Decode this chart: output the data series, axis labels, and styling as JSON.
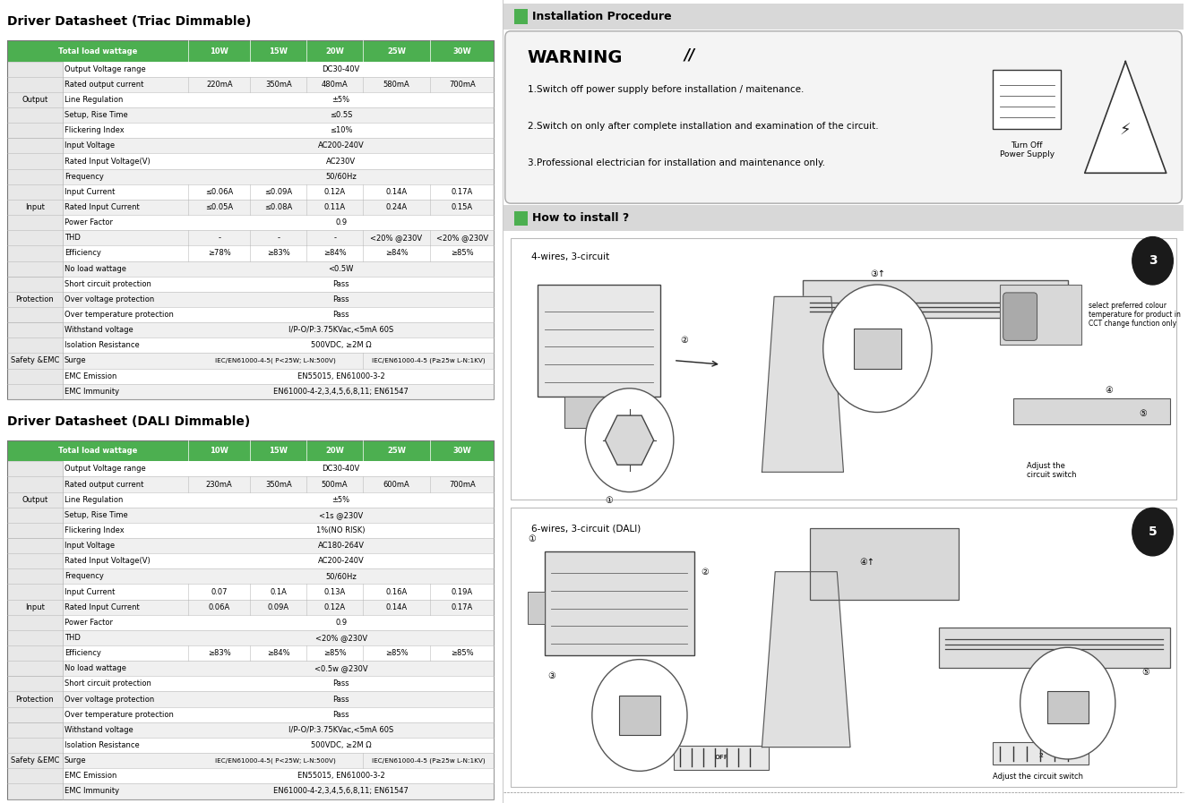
{
  "title1": "Driver Datasheet (Triac Dimmable)",
  "title2": "Driver Datasheet (DALI Dimmable)",
  "header_bg": "#4CAF50",
  "header_fg": "#ffffff",
  "alt_row_bg": "#f0f0f0",
  "white_bg": "#ffffff",
  "border_color": "#bbbbbb",
  "cat_bg": "#e8e8e8",
  "triac_headers": [
    "",
    "Total load wattage",
    "10W",
    "15W",
    "20W",
    "25W",
    "30W"
  ],
  "triac_rows": [
    [
      "Output",
      "Output Voltage range",
      "DC30-40V",
      "",
      "",
      "",
      ""
    ],
    [
      "",
      "Rated output current",
      "220mA",
      "350mA",
      "480mA",
      "580mA",
      "700mA"
    ],
    [
      "",
      "Line Regulation",
      "±5%",
      "",
      "",
      "",
      ""
    ],
    [
      "",
      "Setup, Rise Time",
      "≤0.5S",
      "",
      "",
      "",
      ""
    ],
    [
      "",
      "Flickering Index",
      "≤10%",
      "",
      "",
      "",
      ""
    ],
    [
      "Input",
      "Input Voltage",
      "AC200-240V",
      "",
      "",
      "",
      ""
    ],
    [
      "",
      "Rated Input Voltage(V)",
      "AC230V",
      "",
      "",
      "",
      ""
    ],
    [
      "",
      "Frequency",
      "50/60Hz",
      "",
      "",
      "",
      ""
    ],
    [
      "",
      "Input Current",
      "≤0.06A",
      "≤0.09A",
      "0.12A",
      "0.14A",
      "0.17A"
    ],
    [
      "",
      "Rated Input Current",
      "≤0.05A",
      "≤0.08A",
      "0.11A",
      "0.24A",
      "0.15A"
    ],
    [
      "",
      "Power Factor",
      "0.9",
      "",
      "",
      "",
      ""
    ],
    [
      "",
      "THD",
      "-",
      "-",
      "-",
      "<20% @230V",
      "<20% @230V"
    ],
    [
      "",
      "Efficiency",
      "≥78%",
      "≥83%",
      "≥84%",
      "≥84%",
      "≥85%"
    ],
    [
      "",
      "No load wattage",
      "<0.5W",
      "",
      "",
      "",
      ""
    ],
    [
      "Protection",
      "Short circuit protection",
      "Pass",
      "",
      "",
      "",
      ""
    ],
    [
      "",
      "Over voltage protection",
      "Pass",
      "",
      "",
      "",
      ""
    ],
    [
      "",
      "Over temperature protection",
      "Pass",
      "",
      "",
      "",
      ""
    ],
    [
      "Safety &EMC",
      "Withstand voltage",
      "I/P-O/P:3.75KVac,<5mA 60S",
      "",
      "",
      "",
      ""
    ],
    [
      "",
      "Isolation Resistance",
      "500VDC, ≥2M Ω",
      "",
      "",
      "",
      ""
    ],
    [
      "",
      "Surge",
      "IEC/EN61000-4-5( P<25W; L-N:500V)",
      "",
      "",
      "IEC/EN61000-4-5 (P≥25w L-N:1KV)",
      ""
    ],
    [
      "",
      "EMC Emission",
      "EN55015, EN61000-3-2",
      "",
      "",
      "",
      ""
    ],
    [
      "",
      "EMC Immunity",
      "EN61000-4-2,3,4,5,6,8,11; EN61547",
      "",
      "",
      "",
      ""
    ]
  ],
  "dali_headers": [
    "",
    "Total load wattage",
    "10W",
    "15W",
    "20W",
    "25W",
    "30W"
  ],
  "dali_rows": [
    [
      "Output",
      "Output Voltage range",
      "DC30-40V",
      "",
      "",
      "",
      ""
    ],
    [
      "",
      "Rated output current",
      "230mA",
      "350mA",
      "500mA",
      "600mA",
      "700mA"
    ],
    [
      "",
      "Line Regulation",
      "±5%",
      "",
      "",
      "",
      ""
    ],
    [
      "",
      "Setup, Rise Time",
      "<1s @230V",
      "",
      "",
      "",
      ""
    ],
    [
      "",
      "Flickering Index",
      "1%(NO RISK)",
      "",
      "",
      "",
      ""
    ],
    [
      "Input",
      "Input Voltage",
      "AC180-264V",
      "",
      "",
      "",
      ""
    ],
    [
      "",
      "Rated Input Voltage(V)",
      "AC200-240V",
      "",
      "",
      "",
      ""
    ],
    [
      "",
      "Frequency",
      "50/60Hz",
      "",
      "",
      "",
      ""
    ],
    [
      "",
      "Input Current",
      "0.07",
      "0.1A",
      "0.13A",
      "0.16A",
      "0.19A"
    ],
    [
      "",
      "Rated Input Current",
      "0.06A",
      "0.09A",
      "0.12A",
      "0.14A",
      "0.17A"
    ],
    [
      "",
      "Power Factor",
      "0.9",
      "",
      "",
      "",
      ""
    ],
    [
      "",
      "THD",
      "<20% @230V",
      "",
      "",
      "",
      ""
    ],
    [
      "",
      "Efficiency",
      "≥83%",
      "≥84%",
      "≥85%",
      "≥85%",
      "≥85%"
    ],
    [
      "",
      "No load wattage",
      "<0.5w @230V",
      "",
      "",
      "",
      ""
    ],
    [
      "Protection",
      "Short circuit protection",
      "Pass",
      "",
      "",
      "",
      ""
    ],
    [
      "",
      "Over voltage protection",
      "Pass",
      "",
      "",
      "",
      ""
    ],
    [
      "",
      "Over temperature protection",
      "Pass",
      "",
      "",
      "",
      ""
    ],
    [
      "Safety &EMC",
      "Withstand voltage",
      "I/P-O/P:3.75KVac,<5mA 60S",
      "",
      "",
      "",
      ""
    ],
    [
      "",
      "Isolation Resistance",
      "500VDC, ≥2M Ω",
      "",
      "",
      "",
      ""
    ],
    [
      "",
      "Surge",
      "IEC/EN61000-4-5( P<25W; L-N:500V)",
      "",
      "",
      "IEC/EN61000-4-5 (P≥25w L-N:1KV)",
      ""
    ],
    [
      "",
      "EMC Emission",
      "EN55015, EN61000-3-2",
      "",
      "",
      "",
      ""
    ],
    [
      "",
      "EMC Immunity",
      "EN61000-4-2,3,4,5,6,8,11; EN61547",
      "",
      "",
      "",
      ""
    ]
  ],
  "triac_span_all": [
    "Output Voltage range",
    "Line Regulation",
    "Setup, Rise Time",
    "Flickering Index",
    "Input Voltage",
    "Rated Input Voltage(V)",
    "Frequency",
    "Power Factor",
    "No load wattage",
    "Short circuit protection",
    "Over voltage protection",
    "Over temperature protection",
    "Withstand voltage",
    "Isolation Resistance",
    "EMC Emission",
    "EMC Immunity"
  ],
  "dali_span_all": [
    "Output Voltage range",
    "Line Regulation",
    "Setup, Rise Time",
    "Flickering Index",
    "Input Voltage",
    "Rated Input Voltage(V)",
    "Frequency",
    "Power Factor",
    "No load wattage",
    "Short circuit protection",
    "Over voltage protection",
    "Over temperature protection",
    "Withstand voltage",
    "Isolation Resistance",
    "EMC Emission",
    "EMC Immunity",
    "THD"
  ],
  "surge_split_params": [
    "Surge"
  ],
  "install_title": "Installation Procedure",
  "warning_title": "WARNING",
  "warning_lines": [
    "1.Switch off power supply before installation / maitenance.",
    "2.Switch on only after complete installation and examination of the circuit.",
    "3.Professional electrician for installation and maintenance only."
  ],
  "warning_caption": "Turn Off\nPower Supply",
  "how_title": "How to install ?",
  "diagram1_label": "4-wires, 3-circuit",
  "diagram1_num": "3",
  "diagram1_note": "select preferred colour\ntemperature for product in\nCCT change function only",
  "diagram1_note2": "Adjust the\ncircuit switch",
  "diagram2_label": "6-wires, 3-circuit (DALI)",
  "diagram2_num": "5",
  "diagram2_note2": "Adjust the circuit switch"
}
